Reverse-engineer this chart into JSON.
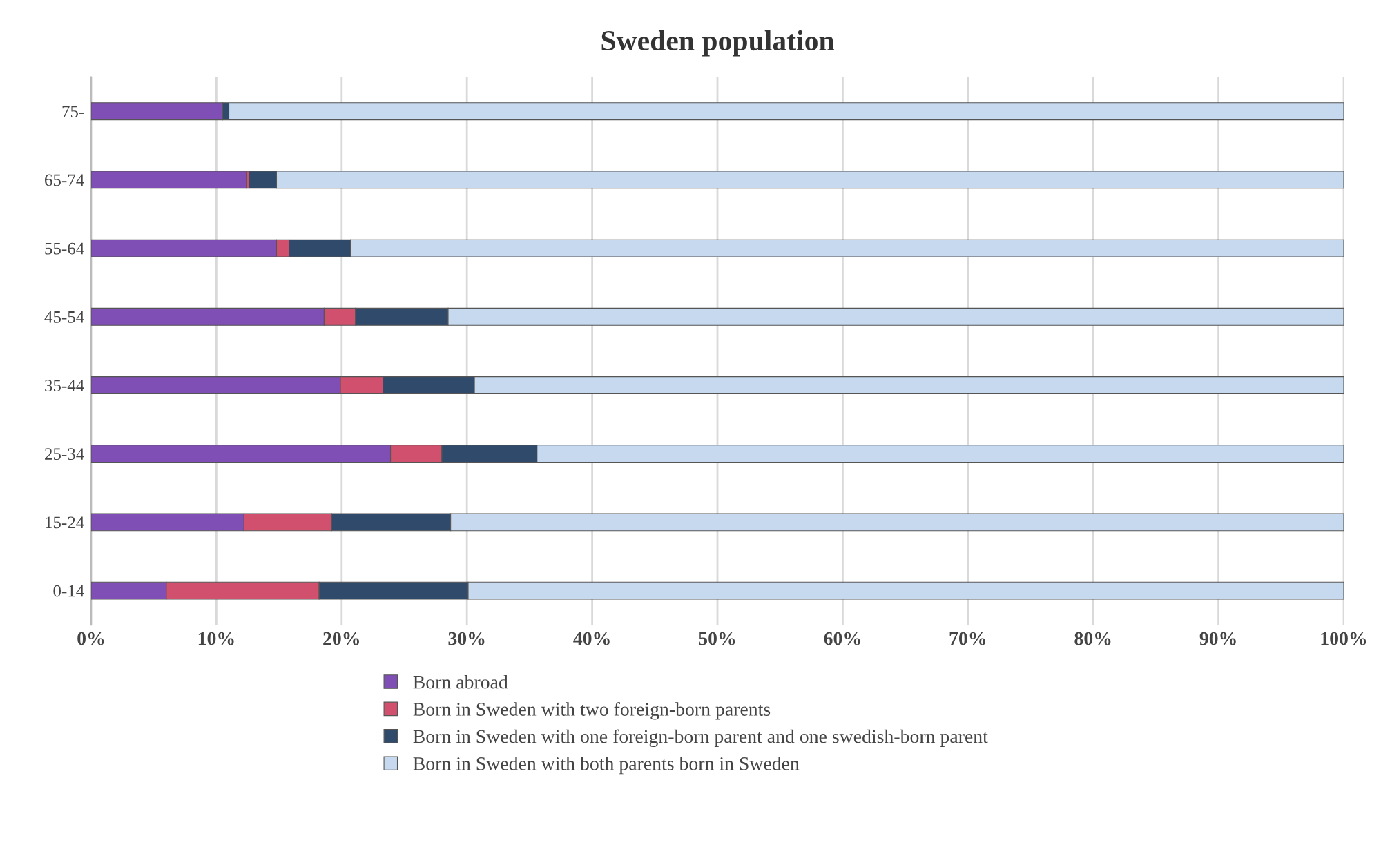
{
  "chart_data": {
    "type": "bar",
    "orientation": "horizontal",
    "stacked": true,
    "title": "Sweden population",
    "categories": [
      "75-",
      "65-74",
      "55-64",
      "45-54",
      "35-44",
      "25-34",
      "15-24",
      "0-14"
    ],
    "series": [
      {
        "name": "Born abroad",
        "color": "#7f4fb5",
        "values": [
          10.5,
          12.4,
          14.8,
          18.6,
          19.9,
          23.9,
          12.2,
          6.0
        ]
      },
      {
        "name": "Born in Sweden with two foreign-born parents",
        "color": "#d0506e",
        "values": [
          null,
          0.2,
          1.0,
          2.5,
          3.4,
          4.1,
          7.0,
          12.2
        ]
      },
      {
        "name": "Born in Sweden with one foreign-born parent and one swedish-born parent",
        "color": "#2f4a6b",
        "values": [
          0.5,
          2.2,
          4.9,
          7.4,
          7.3,
          7.6,
          9.5,
          11.9
        ]
      },
      {
        "name": "Born in Sweden with both parents born in Sweden",
        "color": "#c6d9ee",
        "values": [
          89.0,
          85.2,
          79.3,
          71.5,
          69.4,
          64.4,
          71.3,
          69.9
        ]
      }
    ],
    "xlim": [
      0,
      100
    ],
    "xticks": [
      {
        "value": 0,
        "label": "0%"
      },
      {
        "value": 10,
        "label": "10%"
      },
      {
        "value": 20,
        "label": "20%"
      },
      {
        "value": 30,
        "label": "30%"
      },
      {
        "value": 40,
        "label": "40%"
      },
      {
        "value": 50,
        "label": "50%"
      },
      {
        "value": 60,
        "label": "60%"
      },
      {
        "value": 70,
        "label": "70%"
      },
      {
        "value": 80,
        "label": "80%"
      },
      {
        "value": 90,
        "label": "90%"
      },
      {
        "value": 100,
        "label": "100%"
      }
    ],
    "grid": "x",
    "legend": "bottom"
  }
}
